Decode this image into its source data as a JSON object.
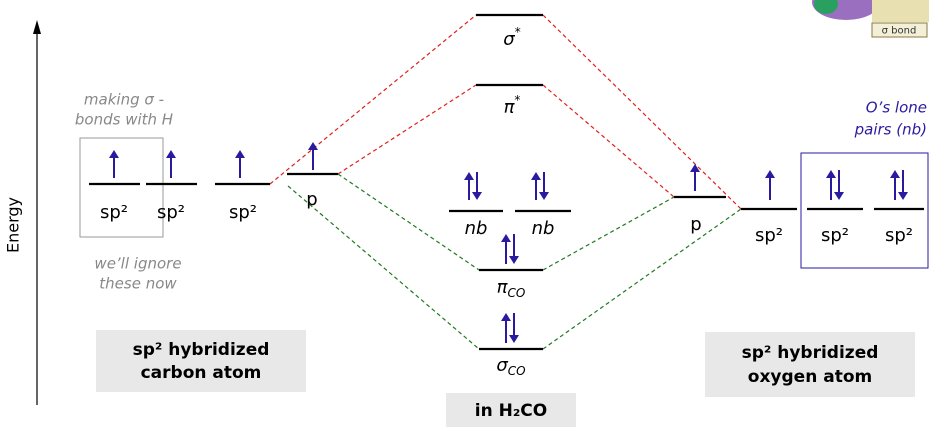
{
  "axis_label": "Energy",
  "notes": {
    "ignored_use": [
      "making σ -",
      "bonds with H"
    ],
    "ignored_note": [
      "we’ll ignore",
      "these now"
    ],
    "lone_pairs": [
      "O’s lone",
      "pairs (nb)"
    ]
  },
  "carbon_orbitals": [
    "sp²",
    "sp²",
    "sp²",
    "p"
  ],
  "oxygen_orbitals": [
    "p",
    "sp²",
    "sp²",
    "sp²"
  ],
  "mo_levels": [
    {
      "symbol": "σ",
      "sup": "*"
    },
    {
      "symbol": "π",
      "sup": "*"
    },
    {
      "symbol": "nb"
    },
    {
      "symbol": "nb"
    },
    {
      "symbol": "π",
      "sub": "CO"
    },
    {
      "symbol": "σ",
      "sub": "CO"
    }
  ],
  "captions": {
    "carbon": [
      "sp² hybridized",
      "carbon atom"
    ],
    "oxygen": [
      "sp² hybridized",
      "oxygen atom"
    ],
    "molecule": "in H₂CO"
  },
  "inset_label": "σ bond"
}
